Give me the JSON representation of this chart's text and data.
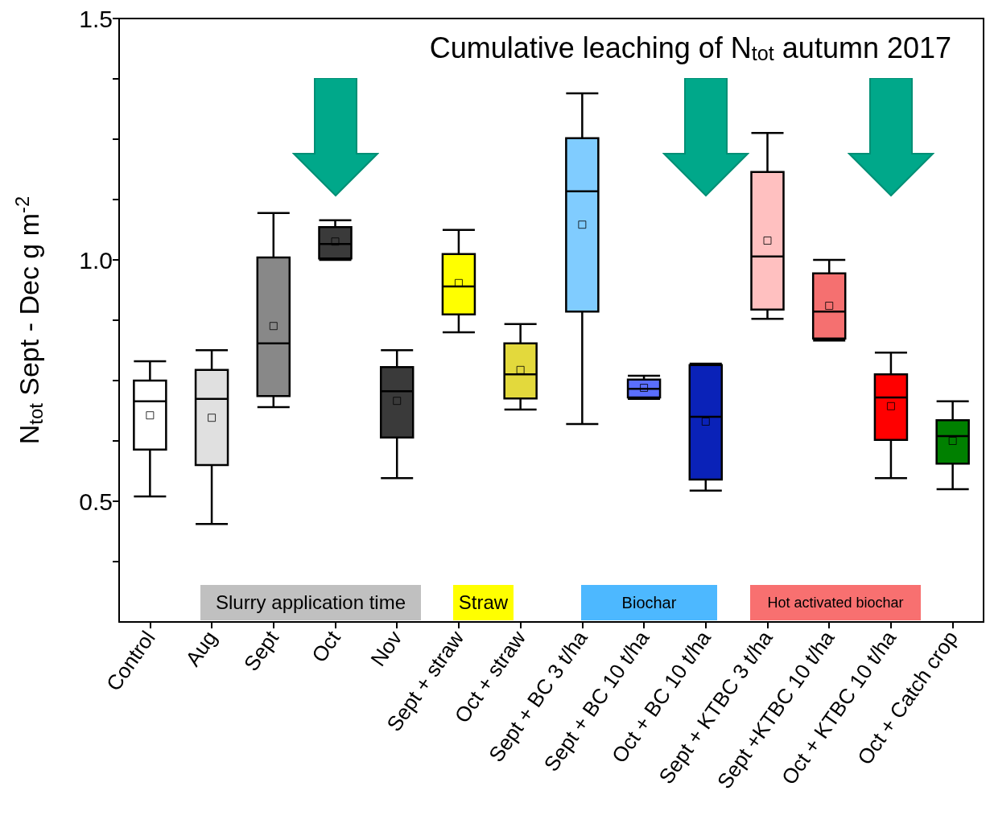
{
  "chart_data": {
    "type": "box",
    "title": "Cumulative leaching of N$_{tot}$ autumn 2017",
    "ylabel": "N$_{tot}$ Sept - Dec g m$^{-2}$",
    "categories": [
      "Control",
      "Aug",
      "Sept",
      "Oct",
      "Nov",
      "Sept + straw",
      "Oct + straw",
      "Sept + BC 3 t/ha",
      "Sept + BC 10 t/ha",
      "Oct + BC 10 t/ha",
      "Sept + KTBC 3 t/ha",
      "Sept +KTBC 10 t/ha",
      "Oct + KTBC 10 t/ha",
      "Oct + Catch crop"
    ],
    "boxes": [
      {
        "low": 0.51,
        "q1": 0.607,
        "median": 0.707,
        "q3": 0.75,
        "high": 0.79,
        "mean": 0.678
      },
      {
        "low": 0.453,
        "q1": 0.575,
        "median": 0.712,
        "q3": 0.772,
        "high": 0.813,
        "mean": 0.673
      },
      {
        "low": 0.695,
        "q1": 0.718,
        "median": 0.827,
        "q3": 1.005,
        "high": 1.097,
        "mean": 0.863
      },
      {
        "low": 1.0,
        "q1": 1.003,
        "median": 1.033,
        "q3": 1.068,
        "high": 1.082,
        "mean": 1.038
      },
      {
        "low": 0.548,
        "q1": 0.632,
        "median": 0.728,
        "q3": 0.778,
        "high": 0.813,
        "mean": 0.708
      },
      {
        "low": 0.85,
        "q1": 0.887,
        "median": 0.945,
        "q3": 1.012,
        "high": 1.062,
        "mean": 0.952
      },
      {
        "low": 0.69,
        "q1": 0.713,
        "median": 0.763,
        "q3": 0.827,
        "high": 0.867,
        "mean": 0.772
      },
      {
        "low": 0.66,
        "q1": 0.893,
        "median": 1.142,
        "q3": 1.252,
        "high": 1.345,
        "mean": 1.073
      },
      {
        "low": 0.712,
        "q1": 0.715,
        "median": 0.733,
        "q3": 0.752,
        "high": 0.76,
        "mean": 0.735
      },
      {
        "low": 0.522,
        "q1": 0.545,
        "median": 0.675,
        "q3": 0.782,
        "high": 0.785,
        "mean": 0.665
      },
      {
        "low": 0.878,
        "q1": 0.897,
        "median": 1.007,
        "q3": 1.182,
        "high": 1.263,
        "mean": 1.04
      },
      {
        "low": 0.833,
        "q1": 0.837,
        "median": 0.893,
        "q3": 0.972,
        "high": 1.0,
        "mean": 0.905
      },
      {
        "low": 0.548,
        "q1": 0.627,
        "median": 0.715,
        "q3": 0.763,
        "high": 0.808,
        "mean": 0.697
      },
      {
        "low": 0.525,
        "q1": 0.578,
        "median": 0.635,
        "q3": 0.668,
        "high": 0.707,
        "mean": 0.625
      }
    ],
    "colors": [
      "#ffffff",
      "#e0e0e0",
      "#888888",
      "#3a3a3a",
      "#3a3a3a",
      "#ffff00",
      "#e3d93c",
      "#80ccff",
      "#5a6eff",
      "#0a22b8",
      "#ffc0c0",
      "#f57070",
      "#ff0000",
      "#008000"
    ],
    "ylim": [
      0.25,
      1.5
    ],
    "yticks": [
      {
        "value": 0.375,
        "label": null
      },
      0.5,
      {
        "value": 0.625,
        "label": null
      },
      {
        "value": 0.75,
        "label": null
      },
      {
        "value": 0.875,
        "label": null
      },
      {
        "value": 1,
        "label": "1.0"
      },
      {
        "value": 1.125,
        "label": null
      },
      {
        "value": 1.25,
        "label": null
      },
      {
        "value": 1.375,
        "label": null
      },
      1.5
    ],
    "annotations": [
      "Slurry application time",
      "Straw",
      "Biochar",
      "Hot activated biochar"
    ],
    "grid": false
  }
}
